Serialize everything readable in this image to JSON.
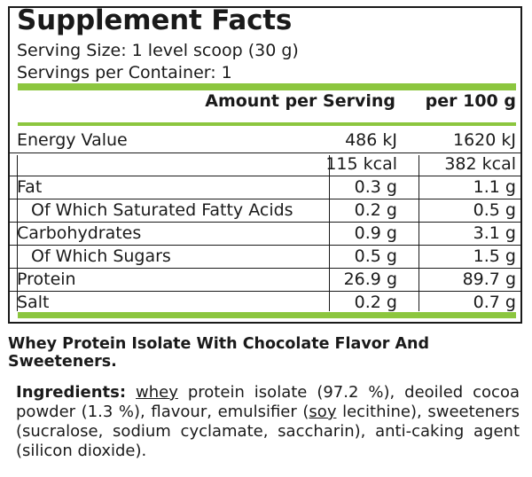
{
  "title": "Supplement Facts",
  "serving_size": "Serving Size: 1 level scoop (30 g)",
  "servings_per_container": "Servings per Container: 1",
  "header": {
    "col1": "Amount  per Serving",
    "col2": "per 100 g"
  },
  "rows": [
    {
      "label": "Energy Value",
      "per_serving": "486 kJ",
      "per_100g": "1620 kJ"
    },
    {
      "label": "",
      "per_serving": "115 kcal",
      "per_100g": "382 kcal"
    },
    {
      "label": "Fat",
      "per_serving": "0.3 g",
      "per_100g": "1.1 g"
    },
    {
      "label": "Of Which Saturated Fatty Acids",
      "per_serving": "0.2 g",
      "per_100g": "0.5 g"
    },
    {
      "label": "Carbohydrates",
      "per_serving": "0.9 g",
      "per_100g": "3.1 g"
    },
    {
      "label": "Of Which Sugars",
      "per_serving": "0.5 g",
      "per_100g": "1.5 g"
    },
    {
      "label": "Protein",
      "per_serving": "26.9 g",
      "per_100g": "89.7 g"
    },
    {
      "label": "Salt",
      "per_serving": "0.2 g",
      "per_100g": "0.7 g"
    }
  ],
  "description": "Whey Protein Isolate With Chocolate Flavor And Sweeteners.",
  "ingredients": {
    "label": "Ingredients:",
    "word_whey": "whey",
    "part1": " protein isolate (97.2 %), deoiled cocoa powder (1.3 %), flavour, emulsifier (",
    "word_soy": "soy",
    "part2": " lecithine), sweeteners (sucralose, sodium cyclamate, saccharin), anti-caking agent (silicon dioxide)."
  },
  "colors": {
    "accent": "#8cc63f",
    "text": "#1a1a1a"
  }
}
